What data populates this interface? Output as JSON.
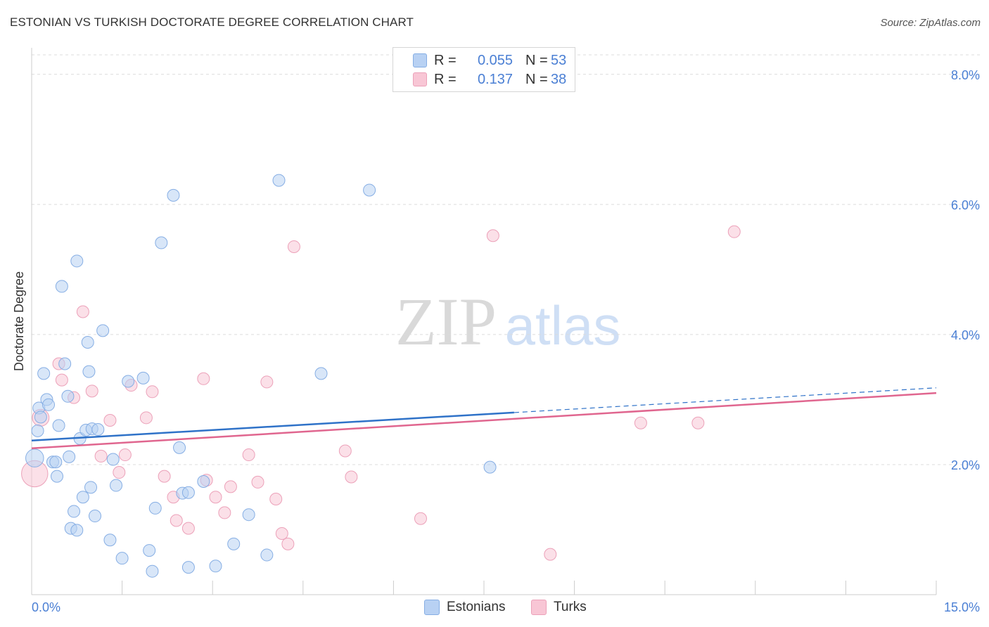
{
  "title": "ESTONIAN VS TURKISH DOCTORATE DEGREE CORRELATION CHART",
  "source": "Source: ZipAtlas.com",
  "watermark": {
    "zip": "ZIP",
    "atlas": "atlas"
  },
  "legend": {
    "rows": [
      {
        "r_label": "R =",
        "r_value": "0.055",
        "n_label": "N =",
        "n_value": "53"
      },
      {
        "r_label": "R =",
        "r_value": "0.137",
        "n_label": "N =",
        "n_value": "38"
      }
    ]
  },
  "bottom_legend": {
    "estonians": "Estonians",
    "turks": "Turks"
  },
  "colors": {
    "blue_fill": "#b8d1f3",
    "blue_stroke": "#86aee4",
    "blue_line": "#2f72c8",
    "pink_fill": "#f8c6d5",
    "pink_stroke": "#eca1b9",
    "pink_line": "#e0668f",
    "tick_label": "#4a7fd4",
    "grid": "#dcdcdc"
  },
  "chart_data": {
    "type": "scatter",
    "title": "ESTONIAN VS TURKISH DOCTORATE DEGREE CORRELATION CHART",
    "xlabel": "",
    "ylabel": "Doctorate Degree",
    "xlim": [
      0,
      15
    ],
    "ylim": [
      0,
      8.3
    ],
    "x_tick_labels": [
      "0.0%",
      "15.0%"
    ],
    "y_ticks": [
      2,
      4,
      6,
      8
    ],
    "y_tick_labels": [
      "2.0%",
      "4.0%",
      "6.0%",
      "8.0%"
    ],
    "grid": true,
    "series": [
      {
        "name": "Estonians",
        "r": 0.055,
        "n": 53,
        "trend": {
          "x0": 0,
          "y0": 2.37,
          "x1": 8.0,
          "y1": 2.8,
          "dashed_to_x": 15.0,
          "dashed_to_y": 3.18
        },
        "points": [
          [
            0.05,
            2.1,
            1.5
          ],
          [
            0.1,
            2.52,
            1
          ],
          [
            0.12,
            2.87,
            1
          ],
          [
            0.15,
            2.73,
            1
          ],
          [
            0.2,
            3.4,
            1
          ],
          [
            0.25,
            3.0,
            1
          ],
          [
            0.28,
            2.92,
            1
          ],
          [
            0.35,
            2.04,
            1
          ],
          [
            0.4,
            2.04,
            1
          ],
          [
            0.42,
            1.82,
            1
          ],
          [
            0.45,
            2.6,
            1
          ],
          [
            0.5,
            4.74,
            1
          ],
          [
            0.55,
            3.55,
            1
          ],
          [
            0.6,
            3.05,
            1
          ],
          [
            0.62,
            2.12,
            1
          ],
          [
            0.65,
            1.02,
            1
          ],
          [
            0.7,
            1.28,
            1
          ],
          [
            0.75,
            5.13,
            1
          ],
          [
            0.75,
            0.99,
            1
          ],
          [
            0.8,
            2.4,
            1
          ],
          [
            0.85,
            1.5,
            1
          ],
          [
            0.9,
            2.53,
            1
          ],
          [
            0.93,
            3.88,
            1
          ],
          [
            0.95,
            3.43,
            1
          ],
          [
            0.98,
            1.65,
            1
          ],
          [
            1.0,
            2.55,
            1
          ],
          [
            1.05,
            1.21,
            1
          ],
          [
            1.1,
            2.54,
            1
          ],
          [
            1.18,
            4.06,
            1
          ],
          [
            1.3,
            0.84,
            1
          ],
          [
            1.35,
            2.08,
            1
          ],
          [
            1.4,
            1.68,
            1
          ],
          [
            1.5,
            0.56,
            1
          ],
          [
            1.6,
            3.28,
            1
          ],
          [
            1.85,
            3.33,
            1
          ],
          [
            1.95,
            0.68,
            1
          ],
          [
            2.0,
            0.36,
            1
          ],
          [
            2.05,
            1.33,
            1
          ],
          [
            2.15,
            5.41,
            1
          ],
          [
            2.35,
            6.14,
            1
          ],
          [
            2.45,
            2.26,
            1
          ],
          [
            2.5,
            1.56,
            1
          ],
          [
            2.6,
            1.57,
            1
          ],
          [
            2.6,
            0.42,
            1
          ],
          [
            2.85,
            1.74,
            1
          ],
          [
            3.05,
            0.44,
            1
          ],
          [
            3.35,
            0.78,
            1
          ],
          [
            3.6,
            1.23,
            1
          ],
          [
            3.9,
            0.61,
            1
          ],
          [
            4.1,
            6.37,
            1
          ],
          [
            4.8,
            3.4,
            1
          ],
          [
            5.6,
            6.22,
            1
          ],
          [
            7.6,
            1.96,
            1
          ]
        ]
      },
      {
        "name": "Turks",
        "r": 0.137,
        "n": 38,
        "trend": {
          "x0": 0,
          "y0": 2.25,
          "x1": 15.0,
          "y1": 3.1
        },
        "points": [
          [
            0.05,
            1.86,
            2.2
          ],
          [
            0.15,
            2.72,
            1.4
          ],
          [
            0.45,
            3.55,
            1
          ],
          [
            0.5,
            3.3,
            1
          ],
          [
            0.7,
            3.03,
            1
          ],
          [
            0.85,
            4.35,
            1
          ],
          [
            1.0,
            3.13,
            1
          ],
          [
            1.15,
            2.13,
            1
          ],
          [
            1.3,
            2.68,
            1
          ],
          [
            1.45,
            1.88,
            1
          ],
          [
            1.55,
            2.15,
            1
          ],
          [
            1.65,
            3.22,
            1
          ],
          [
            1.9,
            2.72,
            1
          ],
          [
            2.0,
            3.12,
            1
          ],
          [
            2.2,
            1.82,
            1
          ],
          [
            2.35,
            1.5,
            1
          ],
          [
            2.4,
            1.14,
            1
          ],
          [
            2.6,
            1.02,
            1
          ],
          [
            2.85,
            3.32,
            1
          ],
          [
            2.9,
            1.76,
            1
          ],
          [
            3.05,
            1.5,
            1
          ],
          [
            3.2,
            1.26,
            1
          ],
          [
            3.3,
            1.66,
            1
          ],
          [
            3.6,
            2.15,
            1
          ],
          [
            3.75,
            1.73,
            1
          ],
          [
            3.9,
            3.27,
            1
          ],
          [
            4.05,
            1.47,
            1
          ],
          [
            4.15,
            0.94,
            1
          ],
          [
            4.25,
            0.78,
            1
          ],
          [
            4.35,
            5.35,
            1
          ],
          [
            5.2,
            2.21,
            1
          ],
          [
            5.3,
            1.81,
            1
          ],
          [
            6.45,
            1.17,
            1
          ],
          [
            7.65,
            5.52,
            1
          ],
          [
            8.6,
            0.62,
            1
          ],
          [
            10.1,
            2.64,
            1
          ],
          [
            11.05,
            2.64,
            1
          ],
          [
            11.65,
            5.58,
            1
          ]
        ]
      }
    ]
  }
}
